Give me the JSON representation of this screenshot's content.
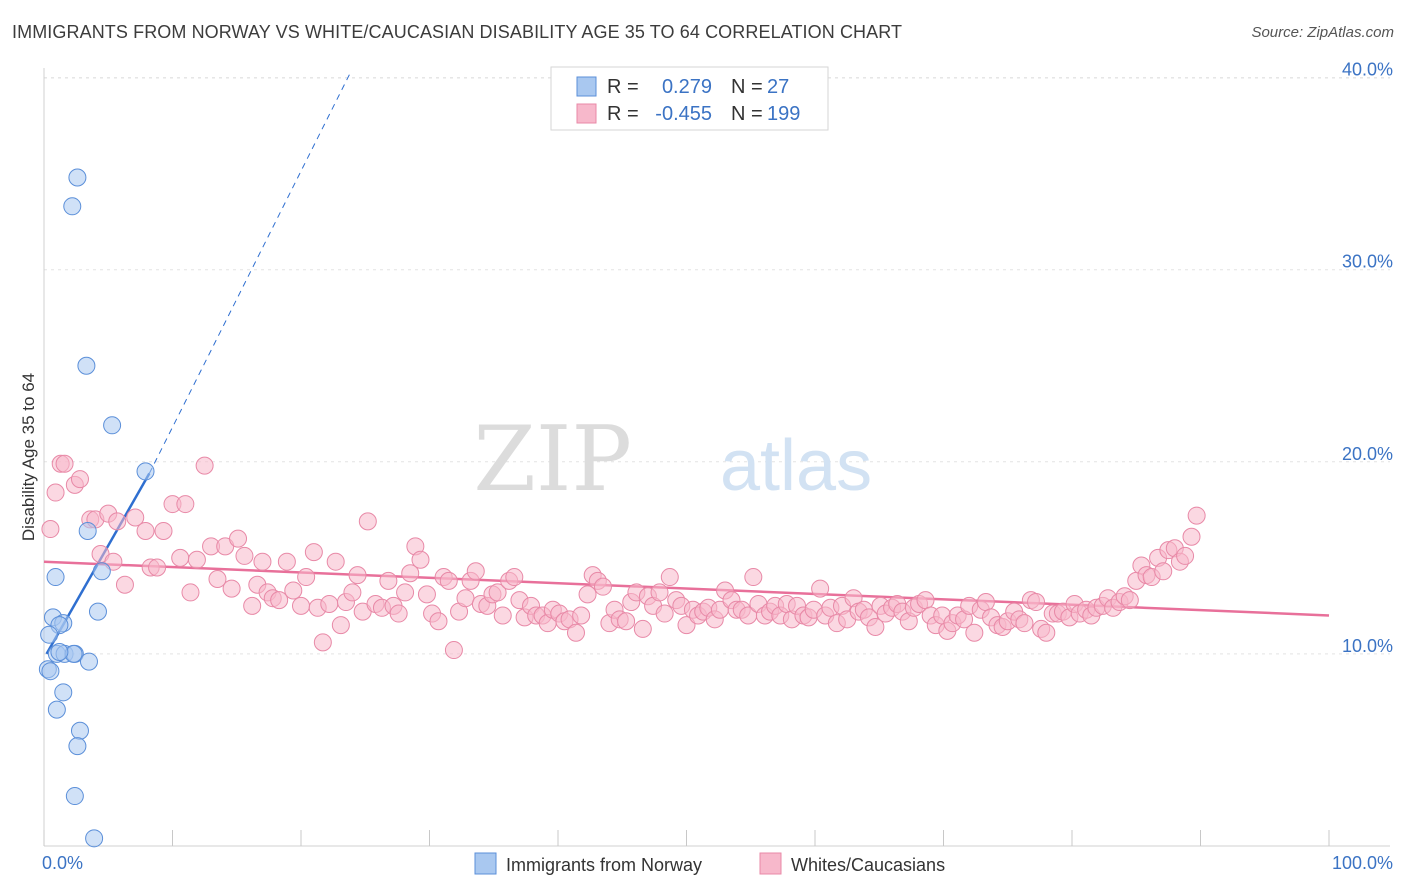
{
  "title": "IMMIGRANTS FROM NORWAY VS WHITE/CAUCASIAN DISABILITY AGE 35 TO 64 CORRELATION CHART",
  "source": "Source: ZipAtlas.com",
  "watermark": {
    "zip": "ZIP",
    "atlas": "atlas"
  },
  "chart_data": {
    "type": "scatter",
    "title": "IMMIGRANTS FROM NORWAY VS WHITE/CAUCASIAN DISABILITY AGE 35 TO 64 CORRELATION CHART",
    "xlabel": "",
    "ylabel": "Disability Age 35 to 64",
    "xlim": [
      0,
      100
    ],
    "ylim": [
      0,
      40.5
    ],
    "x_tick_labels": [
      {
        "value": 0,
        "label": "0.0%"
      },
      {
        "value": 100,
        "label": "100.0%"
      }
    ],
    "y_tick_labels": [
      {
        "value": 10,
        "label": "10.0%"
      },
      {
        "value": 20,
        "label": "20.0%"
      },
      {
        "value": 30,
        "label": "30.0%"
      },
      {
        "value": 40,
        "label": "40.0%"
      }
    ],
    "stats": [
      {
        "r_label": "R =",
        "r": "0.279",
        "n_label": "N =",
        "n": "27",
        "color": "#a9c8f0",
        "edge": "#5b8fd9"
      },
      {
        "r_label": "R =",
        "r": "-0.455",
        "n_label": "N =",
        "n": "199",
        "color": "#f7b8cb",
        "edge": "#e889a7"
      }
    ],
    "series": [
      {
        "name": "Immigrants from Norway",
        "color": "#a9c8f0",
        "edge": "#5b8fd9",
        "line_color": "#2f6fd0",
        "trend": {
          "x0": 0.2,
          "y0": 10.0,
          "x1": 8.2,
          "y1": 19.4,
          "dash_to_x": 23.8,
          "dash_to_y": 40.2
        },
        "points": [
          [
            2.6,
            34.8
          ],
          [
            2.2,
            33.3
          ],
          [
            3.3,
            25.0
          ],
          [
            5.3,
            21.9
          ],
          [
            7.9,
            19.5
          ],
          [
            3.4,
            16.4
          ],
          [
            4.5,
            14.3
          ],
          [
            0.9,
            14.0
          ],
          [
            4.2,
            12.2
          ],
          [
            0.7,
            11.9
          ],
          [
            1.5,
            11.6
          ],
          [
            1.2,
            11.5
          ],
          [
            0.4,
            11.0
          ],
          [
            1.0,
            10.0
          ],
          [
            1.6,
            10.0
          ],
          [
            2.4,
            10.0
          ],
          [
            2.3,
            10.0
          ],
          [
            3.5,
            9.6
          ],
          [
            0.3,
            9.2
          ],
          [
            0.5,
            9.1
          ],
          [
            1.5,
            8.0
          ],
          [
            1.0,
            7.1
          ],
          [
            2.8,
            6.0
          ],
          [
            2.6,
            5.2
          ],
          [
            2.4,
            2.6
          ],
          [
            3.9,
            0.4
          ],
          [
            1.2,
            10.1
          ]
        ]
      },
      {
        "name": "Whites/Caucasians",
        "color": "#f7b8cb",
        "edge": "#e889a7",
        "line_color": "#e8709a",
        "trend": {
          "x0": 0.0,
          "y0": 14.8,
          "x1": 100.0,
          "y1": 12.0
        },
        "points": [
          [
            0.5,
            16.5
          ],
          [
            0.9,
            18.4
          ],
          [
            1.3,
            19.9
          ],
          [
            1.6,
            19.9
          ],
          [
            2.4,
            18.8
          ],
          [
            2.8,
            19.1
          ],
          [
            3.6,
            17.0
          ],
          [
            4.0,
            17.0
          ],
          [
            4.4,
            15.2
          ],
          [
            5.4,
            14.8
          ],
          [
            5.0,
            17.3
          ],
          [
            5.7,
            16.9
          ],
          [
            6.3,
            13.6
          ],
          [
            7.1,
            17.1
          ],
          [
            7.9,
            16.4
          ],
          [
            8.3,
            14.5
          ],
          [
            8.8,
            14.5
          ],
          [
            9.3,
            16.4
          ],
          [
            10.0,
            17.8
          ],
          [
            10.6,
            15.0
          ],
          [
            11.0,
            17.8
          ],
          [
            11.4,
            13.2
          ],
          [
            11.9,
            14.9
          ],
          [
            12.5,
            19.8
          ],
          [
            13.0,
            15.6
          ],
          [
            13.5,
            13.9
          ],
          [
            14.1,
            15.6
          ],
          [
            14.6,
            13.4
          ],
          [
            15.1,
            16.0
          ],
          [
            15.6,
            15.1
          ],
          [
            16.2,
            12.5
          ],
          [
            16.6,
            13.6
          ],
          [
            17.0,
            14.8
          ],
          [
            17.4,
            13.2
          ],
          [
            17.8,
            12.9
          ],
          [
            18.3,
            12.8
          ],
          [
            18.9,
            14.8
          ],
          [
            19.4,
            13.3
          ],
          [
            20.0,
            12.5
          ],
          [
            20.4,
            14.0
          ],
          [
            21.0,
            15.3
          ],
          [
            21.3,
            12.4
          ],
          [
            21.7,
            10.6
          ],
          [
            22.2,
            12.6
          ],
          [
            22.7,
            14.8
          ],
          [
            23.1,
            11.5
          ],
          [
            23.5,
            12.7
          ],
          [
            24.0,
            13.2
          ],
          [
            24.4,
            14.1
          ],
          [
            24.8,
            12.2
          ],
          [
            25.2,
            16.9
          ],
          [
            25.8,
            12.6
          ],
          [
            26.3,
            12.4
          ],
          [
            26.8,
            13.8
          ],
          [
            27.2,
            12.5
          ],
          [
            27.6,
            12.1
          ],
          [
            28.1,
            13.2
          ],
          [
            28.5,
            14.2
          ],
          [
            28.9,
            15.6
          ],
          [
            29.3,
            14.9
          ],
          [
            29.8,
            13.1
          ],
          [
            30.2,
            12.1
          ],
          [
            30.7,
            11.7
          ],
          [
            31.1,
            14.0
          ],
          [
            31.5,
            13.8
          ],
          [
            31.9,
            10.2
          ],
          [
            32.3,
            12.2
          ],
          [
            32.8,
            12.9
          ],
          [
            33.2,
            13.8
          ],
          [
            33.6,
            14.3
          ],
          [
            34.0,
            12.6
          ],
          [
            34.5,
            12.5
          ],
          [
            34.9,
            13.1
          ],
          [
            35.3,
            13.2
          ],
          [
            35.7,
            12.0
          ],
          [
            36.2,
            13.8
          ],
          [
            36.6,
            14.0
          ],
          [
            37.0,
            12.8
          ],
          [
            37.4,
            11.9
          ],
          [
            37.9,
            12.5
          ],
          [
            38.3,
            12.0
          ],
          [
            38.8,
            12.0
          ],
          [
            39.2,
            11.6
          ],
          [
            39.6,
            12.3
          ],
          [
            40.1,
            12.1
          ],
          [
            40.5,
            11.7
          ],
          [
            40.9,
            11.8
          ],
          [
            41.4,
            11.1
          ],
          [
            41.8,
            12.0
          ],
          [
            42.3,
            13.1
          ],
          [
            42.7,
            14.1
          ],
          [
            43.1,
            13.8
          ],
          [
            43.5,
            13.5
          ],
          [
            44.0,
            11.6
          ],
          [
            44.4,
            12.3
          ],
          [
            44.8,
            11.8
          ],
          [
            45.3,
            11.7
          ],
          [
            45.7,
            12.7
          ],
          [
            46.1,
            13.2
          ],
          [
            46.6,
            11.3
          ],
          [
            47.0,
            13.0
          ],
          [
            47.4,
            12.5
          ],
          [
            47.9,
            13.2
          ],
          [
            48.3,
            12.1
          ],
          [
            48.7,
            14.0
          ],
          [
            49.2,
            12.8
          ],
          [
            49.6,
            12.5
          ],
          [
            50.0,
            11.5
          ],
          [
            50.5,
            12.3
          ],
          [
            50.9,
            12.0
          ],
          [
            51.3,
            12.2
          ],
          [
            51.7,
            12.4
          ],
          [
            52.2,
            11.8
          ],
          [
            52.6,
            12.3
          ],
          [
            53.0,
            13.3
          ],
          [
            53.5,
            12.8
          ],
          [
            53.9,
            12.3
          ],
          [
            54.3,
            12.3
          ],
          [
            54.8,
            12.0
          ],
          [
            55.2,
            14.0
          ],
          [
            55.6,
            12.6
          ],
          [
            56.1,
            12.0
          ],
          [
            56.5,
            12.2
          ],
          [
            56.9,
            12.5
          ],
          [
            57.3,
            12.0
          ],
          [
            57.8,
            12.6
          ],
          [
            58.2,
            11.8
          ],
          [
            58.6,
            12.5
          ],
          [
            59.1,
            12.0
          ],
          [
            59.5,
            11.9
          ],
          [
            59.9,
            12.3
          ],
          [
            60.4,
            13.4
          ],
          [
            60.8,
            12.0
          ],
          [
            61.2,
            12.4
          ],
          [
            61.7,
            11.6
          ],
          [
            62.1,
            12.5
          ],
          [
            62.5,
            11.8
          ],
          [
            63.0,
            12.9
          ],
          [
            63.4,
            12.2
          ],
          [
            63.8,
            12.3
          ],
          [
            64.2,
            11.9
          ],
          [
            64.7,
            11.4
          ],
          [
            65.1,
            12.5
          ],
          [
            65.5,
            12.1
          ],
          [
            66.0,
            12.4
          ],
          [
            66.4,
            12.6
          ],
          [
            66.8,
            12.2
          ],
          [
            67.3,
            11.7
          ],
          [
            67.7,
            12.4
          ],
          [
            68.1,
            12.6
          ],
          [
            68.6,
            12.8
          ],
          [
            69.0,
            12.0
          ],
          [
            69.4,
            11.5
          ],
          [
            69.9,
            12.0
          ],
          [
            70.3,
            11.2
          ],
          [
            70.7,
            11.6
          ],
          [
            71.1,
            12.0
          ],
          [
            71.6,
            11.8
          ],
          [
            72.0,
            12.5
          ],
          [
            72.4,
            11.1
          ],
          [
            72.9,
            12.3
          ],
          [
            73.3,
            12.7
          ],
          [
            73.7,
            11.9
          ],
          [
            74.2,
            11.5
          ],
          [
            74.6,
            11.4
          ],
          [
            75.0,
            11.7
          ],
          [
            75.5,
            12.2
          ],
          [
            75.9,
            11.8
          ],
          [
            76.3,
            11.6
          ],
          [
            76.8,
            12.8
          ],
          [
            77.2,
            12.7
          ],
          [
            77.6,
            11.3
          ],
          [
            78.0,
            11.1
          ],
          [
            78.5,
            12.1
          ],
          [
            78.9,
            12.1
          ],
          [
            79.3,
            12.2
          ],
          [
            79.8,
            11.9
          ],
          [
            80.2,
            12.6
          ],
          [
            80.6,
            12.1
          ],
          [
            81.1,
            12.3
          ],
          [
            81.5,
            12.0
          ],
          [
            81.9,
            12.4
          ],
          [
            82.4,
            12.5
          ],
          [
            82.8,
            12.9
          ],
          [
            83.2,
            12.4
          ],
          [
            83.7,
            12.7
          ],
          [
            84.1,
            13.0
          ],
          [
            84.5,
            12.8
          ],
          [
            85.0,
            13.8
          ],
          [
            85.4,
            14.6
          ],
          [
            85.8,
            14.1
          ],
          [
            86.2,
            14.0
          ],
          [
            86.7,
            15.0
          ],
          [
            87.1,
            14.3
          ],
          [
            87.5,
            15.4
          ],
          [
            88.0,
            15.5
          ],
          [
            88.4,
            14.8
          ],
          [
            88.8,
            15.1
          ],
          [
            89.3,
            16.1
          ],
          [
            89.7,
            17.2
          ]
        ]
      }
    ]
  }
}
